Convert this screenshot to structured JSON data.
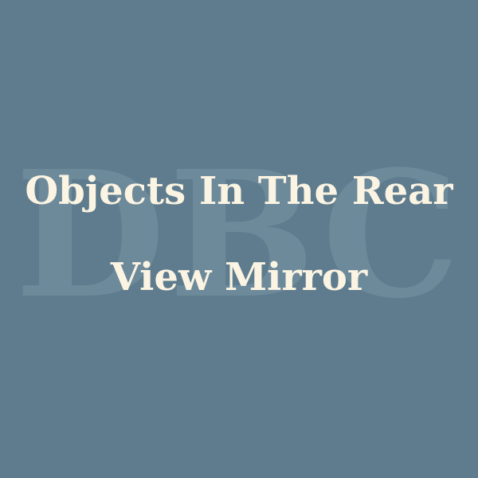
{
  "watermark": {
    "text": "DBC"
  },
  "title": {
    "line1": "Objects In The Rear",
    "line2": "View Mirror"
  },
  "colors": {
    "background": "#5f7c8e",
    "watermark": "#6d8a9b",
    "title": "#fbf4e3"
  }
}
